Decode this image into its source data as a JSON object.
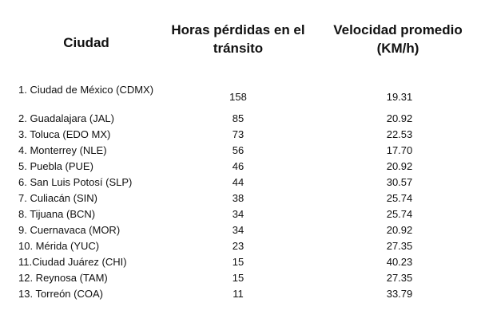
{
  "table": {
    "headers": {
      "city": "Ciudad",
      "hours": "Horas pérdidas en el tránsito",
      "speed": "Velocidad promedio (KM/h)"
    },
    "rows": [
      {
        "city": "1. Ciudad de México (CDMX)",
        "hours": "158",
        "speed": "19.31"
      },
      {
        "city": "2. Guadalajara (JAL)",
        "hours": "85",
        "speed": "20.92"
      },
      {
        "city": "3. Toluca (EDO MX)",
        "hours": "73",
        "speed": "22.53"
      },
      {
        "city": "4. Monterrey (NLE)",
        "hours": "56",
        "speed": "17.70"
      },
      {
        "city": "5. Puebla (PUE)",
        "hours": "46",
        "speed": "20.92"
      },
      {
        "city": "6. San Luis Potosí (SLP)",
        "hours": "44",
        "speed": "30.57"
      },
      {
        "city": "7. Culiacán (SIN)",
        "hours": "38",
        "speed": "25.74"
      },
      {
        "city": "8. Tijuana (BCN)",
        "hours": "34",
        "speed": "25.74"
      },
      {
        "city": "9. Cuernavaca (MOR)",
        "hours": "34",
        "speed": "20.92"
      },
      {
        "city": "10. Mérida (YUC)",
        "hours": "23",
        "speed": "27.35"
      },
      {
        "city": "11.Ciudad Juárez (CHI)",
        "hours": "15",
        "speed": "40.23"
      },
      {
        "city": "12. Reynosa (TAM)",
        "hours": "15",
        "speed": "27.35"
      },
      {
        "city": "13. Torreón (COA)",
        "hours": "11",
        "speed": "33.79"
      }
    ]
  }
}
